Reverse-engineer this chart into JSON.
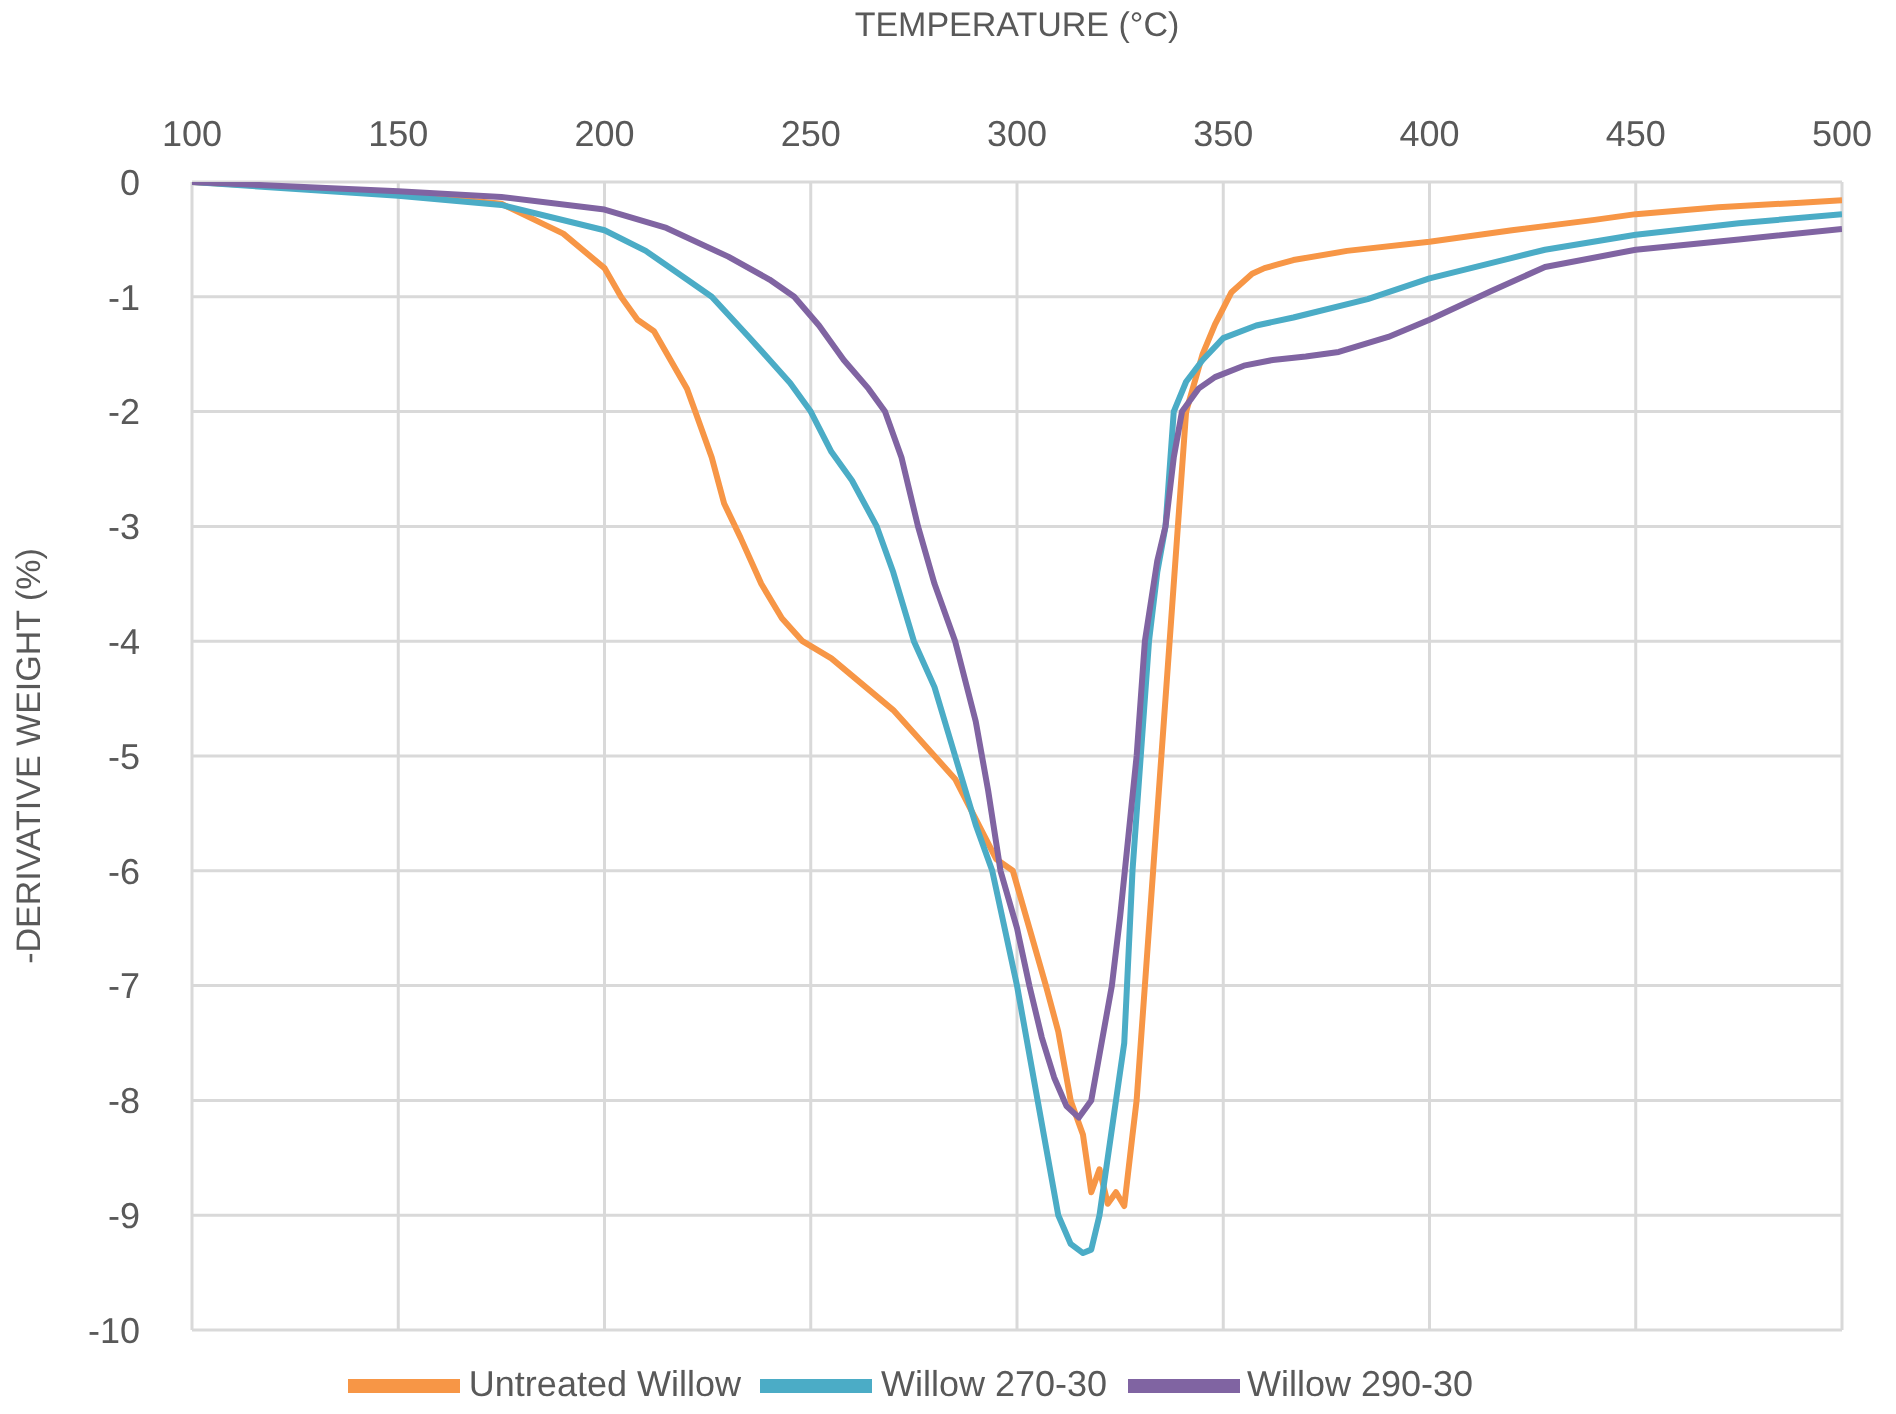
{
  "chart_data": {
    "type": "line",
    "xlabel": "TEMPERATURE (°C)",
    "ylabel": "-DERIVATIVE WEIGHT (%)",
    "xlim": [
      100,
      500
    ],
    "xticks": [
      100,
      150,
      200,
      250,
      300,
      350,
      400,
      450,
      500
    ],
    "ylim": [
      -10,
      0
    ],
    "yticks": [
      -10,
      -9,
      -8,
      -7,
      -6,
      -5,
      -4,
      -3,
      -2,
      -1,
      0
    ],
    "grid": true,
    "legend": "bottom",
    "line_style": "solid",
    "marker": "none",
    "series": [
      {
        "name": "Untreated Willow",
        "color": "#f79646",
        "x": [
          100,
          150,
          175,
          190,
          200,
          204,
          208,
          212,
          216,
          220,
          222,
          226,
          229,
          233,
          238,
          243,
          248,
          255,
          260,
          265,
          270,
          275,
          280,
          285,
          290,
          295,
          299,
          303,
          307,
          310,
          313,
          316,
          318,
          320,
          322,
          324,
          326,
          328,
          329,
          331,
          333,
          335,
          337,
          339,
          341,
          345,
          348,
          352,
          357,
          360,
          363,
          367,
          380,
          400,
          420,
          440,
          450,
          470,
          490,
          500
        ],
        "values": [
          0,
          -0.1,
          -0.19,
          -0.45,
          -0.75,
          -1.0,
          -1.2,
          -1.3,
          -1.55,
          -1.8,
          -2.0,
          -2.4,
          -2.8,
          -3.1,
          -3.5,
          -3.8,
          -4.0,
          -4.15,
          -4.3,
          -4.45,
          -4.6,
          -4.8,
          -5.0,
          -5.2,
          -5.55,
          -5.9,
          -6.0,
          -6.5,
          -7.0,
          -7.4,
          -8.0,
          -8.3,
          -8.8,
          -8.6,
          -8.9,
          -8.8,
          -8.92,
          -8.3,
          -8.0,
          -7.0,
          -6.0,
          -5.0,
          -4.0,
          -3.0,
          -2.0,
          -1.5,
          -1.24,
          -0.96,
          -0.8,
          -0.75,
          -0.72,
          -0.68,
          -0.6,
          -0.52,
          -0.42,
          -0.33,
          -0.28,
          -0.22,
          -0.18,
          -0.16
        ]
      },
      {
        "name": "Willow 270-30",
        "color": "#4bacc6",
        "x": [
          100,
          150,
          175,
          200,
          210,
          220,
          226,
          235,
          245,
          250,
          255,
          260,
          266,
          270,
          275,
          280,
          285,
          290,
          294,
          297,
          300,
          305,
          310,
          313,
          316,
          318,
          320,
          322,
          324,
          326,
          328,
          330,
          332,
          334,
          336,
          338,
          341,
          345,
          350,
          358,
          367,
          385,
          400,
          428,
          450,
          475,
          500
        ],
        "values": [
          0,
          -0.12,
          -0.2,
          -0.42,
          -0.6,
          -0.85,
          -1.0,
          -1.35,
          -1.75,
          -2.0,
          -2.35,
          -2.6,
          -3.0,
          -3.4,
          -4.0,
          -4.4,
          -5.0,
          -5.6,
          -6.0,
          -6.5,
          -7.0,
          -8.0,
          -9.0,
          -9.25,
          -9.33,
          -9.3,
          -9.0,
          -8.5,
          -8.0,
          -7.5,
          -6.0,
          -5.0,
          -4.0,
          -3.4,
          -3.0,
          -2.0,
          -1.74,
          -1.55,
          -1.36,
          -1.25,
          -1.18,
          -1.02,
          -0.84,
          -0.59,
          -0.46,
          -0.36,
          -0.28
        ]
      },
      {
        "name": "Willow 290-30",
        "color": "#8064a2",
        "x": [
          100,
          150,
          175,
          200,
          215,
          230,
          240,
          246,
          252,
          258,
          264,
          268,
          272,
          276,
          280,
          285,
          290,
          293,
          296,
          300,
          303,
          306,
          309,
          312,
          315,
          318,
          320,
          323,
          325,
          327,
          329,
          331,
          334,
          336,
          338,
          340,
          344,
          348,
          355,
          362,
          370,
          378,
          390,
          400,
          415,
          428,
          450,
          475,
          500
        ],
        "values": [
          0,
          -0.08,
          -0.13,
          -0.24,
          -0.4,
          -0.65,
          -0.85,
          -1.0,
          -1.25,
          -1.55,
          -1.8,
          -2.0,
          -2.4,
          -3.0,
          -3.5,
          -4.0,
          -4.7,
          -5.3,
          -6.0,
          -6.5,
          -7.0,
          -7.45,
          -7.8,
          -8.05,
          -8.15,
          -8.0,
          -7.6,
          -7.0,
          -6.4,
          -5.7,
          -5.0,
          -4.0,
          -3.3,
          -3.0,
          -2.4,
          -2.0,
          -1.8,
          -1.7,
          -1.6,
          -1.55,
          -1.52,
          -1.48,
          -1.35,
          -1.2,
          -0.95,
          -0.74,
          -0.59,
          -0.5,
          -0.41
        ]
      }
    ]
  }
}
